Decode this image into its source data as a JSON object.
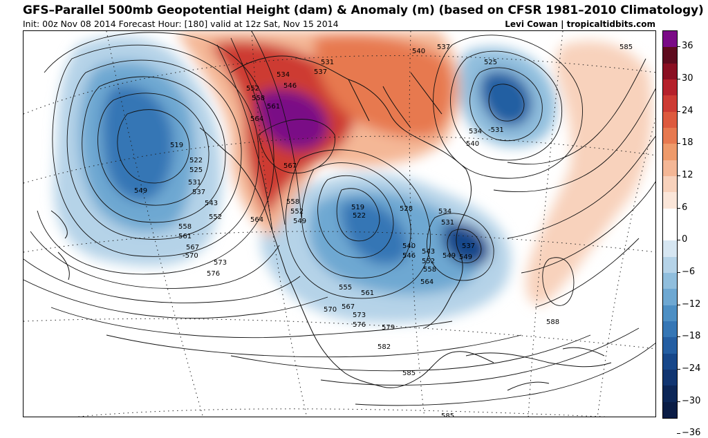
{
  "header": {
    "title": "GFS–Parallel 500mb Geopotential Height (dam) & Anomaly (m) (based on CFSR 1981–2010 Climatology)",
    "subtitle": "Init: 00z Nov 08 2014 Forecast Hour: [180] valid at 12z Sat, Nov 15 2014",
    "credit": "Levi Cowan | tropicaltidbits.com"
  },
  "colorbar": {
    "labels": [
      "36",
      "30",
      "24",
      "18",
      "12",
      "6",
      "0",
      "−6",
      "−12",
      "−18",
      "−24",
      "−30",
      "−36"
    ],
    "colors": [
      "#7a0a86",
      "#5e0b1e",
      "#8a0f22",
      "#b5212b",
      "#cd3b33",
      "#dd5a3e",
      "#e7794f",
      "#ee9a6a",
      "#f4b796",
      "#f8d2bc",
      "#fbe6d9",
      "#ffffff",
      "#ffffff",
      "#d6e6f2",
      "#b5d3e8",
      "#90bedd",
      "#6ea8d2",
      "#4d8fc4",
      "#3576b5",
      "#245ea2",
      "#17478a",
      "#113571",
      "#0c2657",
      "#0a1c45"
    ]
  },
  "map": {
    "contour_labels": [
      {
        "text": "519"
      },
      {
        "text": "522"
      },
      {
        "text": "525"
      },
      {
        "text": "531"
      },
      {
        "text": "537"
      },
      {
        "text": "549"
      },
      {
        "text": "543"
      },
      {
        "text": "552"
      },
      {
        "text": "558"
      },
      {
        "text": "561"
      },
      {
        "text": "567"
      },
      {
        "text": "-570"
      },
      {
        "text": "573"
      },
      {
        "text": "576"
      },
      {
        "text": "564"
      },
      {
        "text": "549"
      },
      {
        "text": "552"
      },
      {
        "text": "558"
      },
      {
        "text": "567"
      },
      {
        "text": "564"
      },
      {
        "text": "561"
      },
      {
        "text": "558"
      },
      {
        "text": "552"
      },
      {
        "text": "546"
      },
      {
        "text": "534"
      },
      {
        "text": "537"
      },
      {
        "text": "531"
      },
      {
        "text": "540"
      },
      {
        "text": "537"
      },
      {
        "text": "525"
      },
      {
        "text": "534"
      },
      {
        "text": "-531"
      },
      {
        "text": "540"
      },
      {
        "text": "585"
      },
      {
        "text": "519"
      },
      {
        "text": "522"
      },
      {
        "text": "528"
      },
      {
        "text": "534"
      },
      {
        "text": "531"
      },
      {
        "text": "537"
      },
      {
        "text": "540"
      },
      {
        "text": "546"
      },
      {
        "text": "543"
      },
      {
        "text": "549"
      },
      {
        "text": "552"
      },
      {
        "text": "558"
      },
      {
        "text": "564"
      },
      {
        "text": "555"
      },
      {
        "text": "561"
      },
      {
        "text": "567"
      },
      {
        "text": "570"
      },
      {
        "text": "573"
      },
      {
        "text": "576"
      },
      {
        "text": "579"
      },
      {
        "text": "582"
      },
      {
        "text": "588"
      },
      {
        "text": "585"
      },
      {
        "text": "585"
      },
      {
        "text": "549"
      }
    ]
  }
}
